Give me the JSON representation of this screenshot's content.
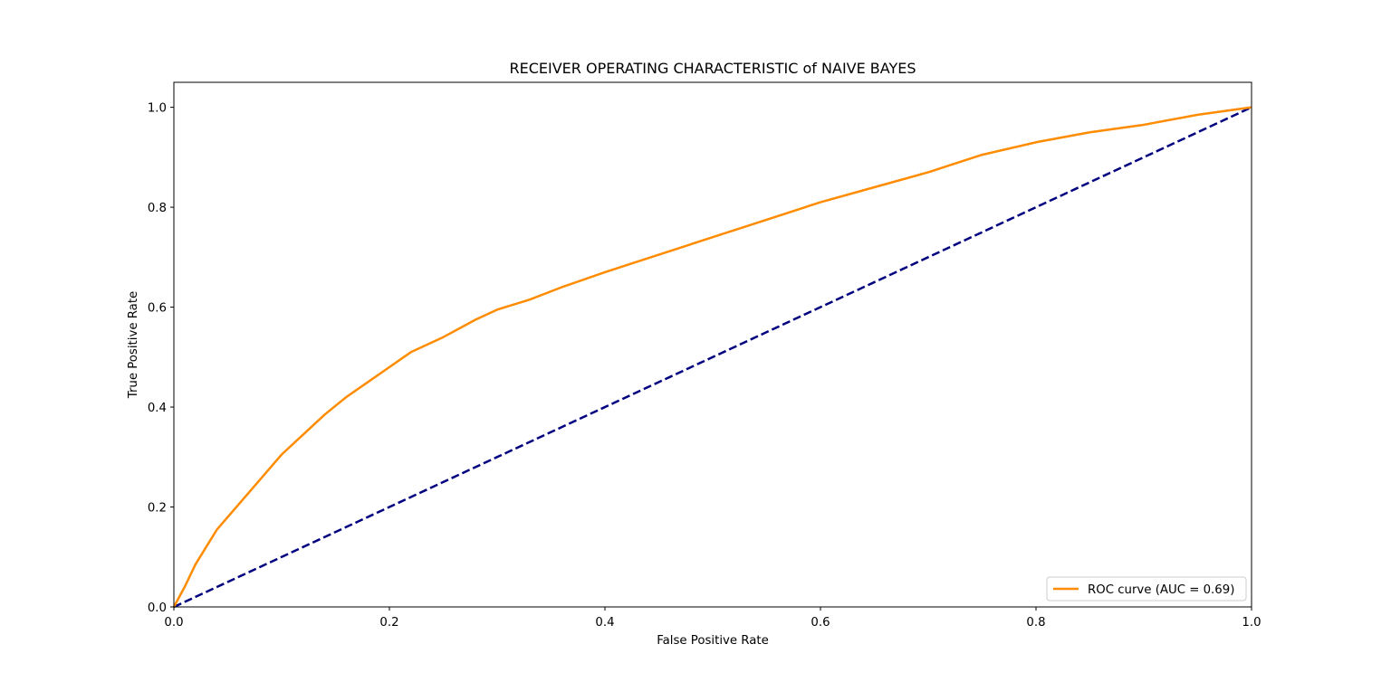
{
  "chart_data": {
    "type": "line",
    "title": "RECEIVER OPERATING CHARACTERISTIC of NAIVE BAYES",
    "xlabel": "False Positive Rate",
    "ylabel": "True Positive Rate",
    "xlim": [
      0.0,
      1.0
    ],
    "ylim": [
      0.0,
      1.05
    ],
    "grid": false,
    "legend_position": "lower right",
    "x_ticks": [
      0.0,
      0.2,
      0.4,
      0.6,
      0.8,
      1.0
    ],
    "x_tick_labels": [
      "0.0",
      "0.2",
      "0.4",
      "0.6",
      "0.8",
      "1.0"
    ],
    "y_ticks": [
      0.0,
      0.2,
      0.4,
      0.6,
      0.8,
      1.0
    ],
    "y_tick_labels": [
      "0.0",
      "0.2",
      "0.4",
      "0.6",
      "0.8",
      "1.0"
    ],
    "series": [
      {
        "name": "ROC curve (AUC = 0.69)",
        "color": "#ff8c00",
        "style": "solid",
        "x": [
          0.0,
          0.01,
          0.02,
          0.03,
          0.04,
          0.05,
          0.06,
          0.08,
          0.1,
          0.12,
          0.14,
          0.16,
          0.18,
          0.2,
          0.22,
          0.25,
          0.28,
          0.3,
          0.33,
          0.36,
          0.4,
          0.45,
          0.5,
          0.55,
          0.6,
          0.65,
          0.7,
          0.75,
          0.8,
          0.85,
          0.9,
          0.95,
          1.0
        ],
        "y": [
          0.0,
          0.04,
          0.085,
          0.12,
          0.155,
          0.18,
          0.205,
          0.255,
          0.305,
          0.345,
          0.385,
          0.42,
          0.45,
          0.48,
          0.51,
          0.54,
          0.575,
          0.595,
          0.615,
          0.64,
          0.67,
          0.705,
          0.74,
          0.775,
          0.81,
          0.84,
          0.87,
          0.905,
          0.93,
          0.95,
          0.965,
          0.985,
          1.0
        ]
      },
      {
        "name": "",
        "color": "#000080",
        "style": "dashed",
        "x": [
          0.0,
          1.0
        ],
        "y": [
          0.0,
          1.0
        ]
      }
    ],
    "legend": [
      "ROC curve (AUC = 0.69)"
    ]
  }
}
